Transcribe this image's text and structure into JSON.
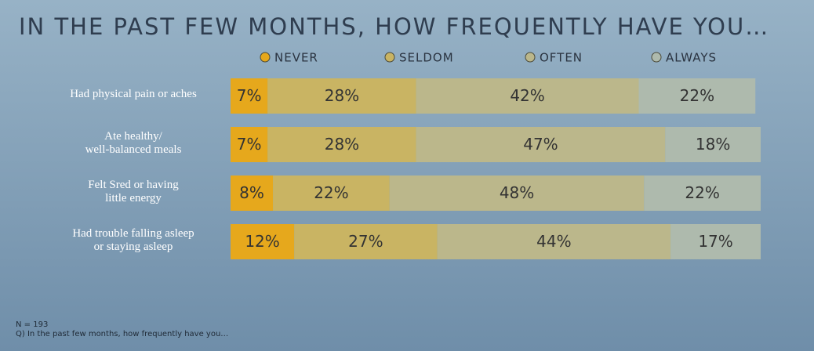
{
  "chart_data": {
    "type": "stacked-bar-horizontal",
    "title": "IN THE PAST FEW MONTHS, HOW FREQUENTLY HAVE YOU…",
    "categories": [
      [
        "Had physical pain or aches"
      ],
      [
        "Ate healthy/",
        "well-balanced meals"
      ],
      [
        "Felt Sred or having",
        "little energy"
      ],
      [
        "Had trouble falling asleep",
        "or staying asleep"
      ]
    ],
    "series": [
      {
        "name": "NEVER",
        "color": "#e6a81c",
        "values": [
          7,
          7,
          8,
          12
        ],
        "value_labels": [
          "7%",
          "7%",
          "8%",
          "12%"
        ]
      },
      {
        "name": "SELDOM",
        "color": "#c9b463",
        "values": [
          28,
          28,
          22,
          27
        ],
        "value_labels": [
          "28%",
          "28%",
          "22%",
          "27%"
        ]
      },
      {
        "name": "OFTEN",
        "color": "#bbb78b",
        "values": [
          42,
          47,
          48,
          44
        ],
        "value_labels": [
          "42%",
          "47%",
          "48%",
          "44%"
        ]
      },
      {
        "name": "ALWAYS",
        "color": "#aebaad",
        "values": [
          22,
          18,
          22,
          17
        ],
        "value_labels": [
          "22%",
          "18%",
          "22%",
          "17%"
        ]
      }
    ],
    "xlim": [
      0,
      100
    ],
    "footnotes": [
      "N = 193",
      "Q) In the past few months, how frequently have you…"
    ]
  }
}
